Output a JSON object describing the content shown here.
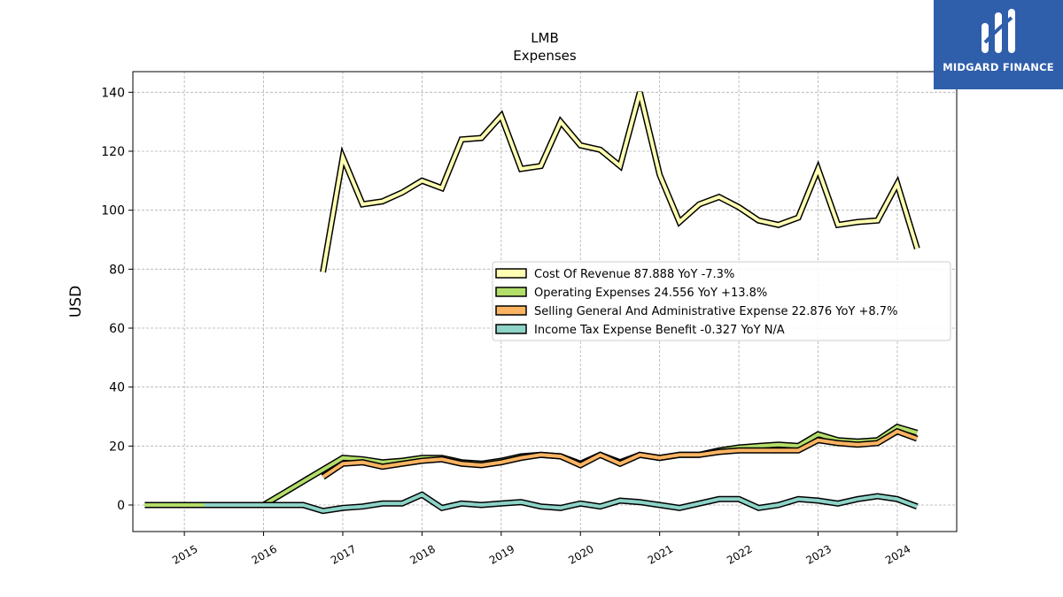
{
  "brand": {
    "name": "MIDGARD FINANCE",
    "bg_color": "#2f5eab"
  },
  "chart_data": {
    "type": "line",
    "title": "LMB",
    "subtitle": "Expenses",
    "ylabel": "USD",
    "xlabel": "",
    "ylim": [
      -9,
      147
    ],
    "xlim": [
      2014.35,
      2024.75
    ],
    "yticks": [
      0,
      20,
      40,
      60,
      80,
      100,
      120,
      140
    ],
    "xticks": [
      2015,
      2016,
      2017,
      2018,
      2019,
      2020,
      2021,
      2022,
      2023,
      2024
    ],
    "grid": true,
    "legend_position": "center-right",
    "series": [
      {
        "name": "Cost Of Revenue",
        "legend": "Cost Of Revenue  87.888 YoY -7.3%",
        "color": "#ffffb3",
        "x": [
          2016.75,
          2017.0,
          2017.25,
          2017.5,
          2017.75,
          2018.0,
          2018.25,
          2018.5,
          2018.75,
          2019.0,
          2019.25,
          2019.5,
          2019.75,
          2020.0,
          2020.25,
          2020.5,
          2020.75,
          2021.0,
          2021.25,
          2021.5,
          2021.75,
          2022.0,
          2022.25,
          2022.5,
          2022.75,
          2023.0,
          2023.25,
          2023.5,
          2023.75,
          2024.0,
          2024.25
        ],
        "y": [
          79,
          118,
          102,
          103,
          106,
          110,
          107.5,
          124,
          124.5,
          132,
          114,
          115,
          130,
          122,
          120.5,
          115,
          140,
          112,
          96,
          102,
          104.5,
          101,
          96.5,
          95,
          97.5,
          114,
          95,
          96,
          96.5,
          109,
          87
        ]
      },
      {
        "name": "Operating Expenses",
        "legend": "Operating Expenses  24.556 YoY +13.8%",
        "color": "#b3de69",
        "x": [
          2014.5,
          2014.75,
          2015.0,
          2015.25,
          2015.5,
          2015.75,
          2016.0,
          2016.25,
          2016.5,
          2016.75,
          2017.0,
          2017.25,
          2017.5,
          2017.75,
          2018.0,
          2018.25,
          2018.5,
          2018.75,
          2019.0,
          2019.25,
          2019.5,
          2019.75,
          2020.0,
          2020.25,
          2020.5,
          2020.75,
          2021.0,
          2021.25,
          2021.5,
          2021.75,
          2022.0,
          2022.25,
          2022.5,
          2022.75,
          2023.0,
          2023.25,
          2023.5,
          2023.75,
          2024.0,
          2024.25
        ],
        "y": [
          0,
          0,
          0,
          0,
          0,
          0,
          0,
          4,
          8,
          12,
          16,
          15.5,
          14.5,
          15,
          16,
          16,
          14.5,
          14,
          15,
          16.5,
          17,
          16.5,
          14,
          17,
          14.5,
          17,
          16,
          17,
          17,
          18.5,
          19.5,
          20,
          20.5,
          20,
          24,
          22,
          21.5,
          22,
          26.5,
          24.5
        ]
      },
      {
        "name": "Selling General And Administrative Expense",
        "legend": "Selling General And Administrative Expense  22.876 YoY +8.7%",
        "color": "#fdb462",
        "x": [
          2016.75,
          2017.0,
          2017.25,
          2017.5,
          2017.75,
          2018.0,
          2018.25,
          2018.5,
          2018.75,
          2019.0,
          2019.25,
          2019.5,
          2019.75,
          2020.0,
          2020.25,
          2020.5,
          2020.75,
          2021.0,
          2021.25,
          2021.5,
          2021.75,
          2022.0,
          2022.25,
          2022.5,
          2022.75,
          2023.0,
          2023.25,
          2023.5,
          2023.75,
          2024.0,
          2024.25
        ],
        "y": [
          9.5,
          14,
          14.5,
          13,
          14,
          15,
          15.5,
          14,
          13.5,
          14.5,
          16,
          17,
          16.5,
          13.5,
          17,
          14,
          17,
          16,
          17,
          17,
          18,
          18.5,
          18.5,
          18.5,
          18.5,
          22,
          21,
          20.5,
          21,
          25,
          22.5
        ]
      },
      {
        "name": "Income Tax Expense Benefit",
        "legend": "Income Tax Expense Benefit  -0.327 YoY N/A",
        "color": "#8dd3c7",
        "x": [
          2015.25,
          2015.5,
          2015.75,
          2016.0,
          2016.25,
          2016.5,
          2016.75,
          2017.0,
          2017.25,
          2017.5,
          2017.75,
          2018.0,
          2018.25,
          2018.5,
          2018.75,
          2019.0,
          2019.25,
          2019.5,
          2019.75,
          2020.0,
          2020.25,
          2020.5,
          2020.75,
          2021.0,
          2021.25,
          2021.5,
          2021.75,
          2022.0,
          2022.25,
          2022.5,
          2022.75,
          2023.0,
          2023.25,
          2023.5,
          2023.75,
          2024.0,
          2024.25
        ],
        "y": [
          0,
          0,
          0,
          0,
          0,
          0,
          -2,
          -1,
          -0.5,
          0.5,
          0.5,
          3.5,
          -1,
          0.5,
          0,
          0.5,
          1,
          -0.5,
          -1,
          0.5,
          -0.5,
          1.5,
          1,
          0,
          -1,
          0.5,
          2,
          2,
          -1,
          0,
          2,
          1.5,
          0.5,
          2,
          3,
          2,
          -0.5
        ]
      }
    ]
  }
}
